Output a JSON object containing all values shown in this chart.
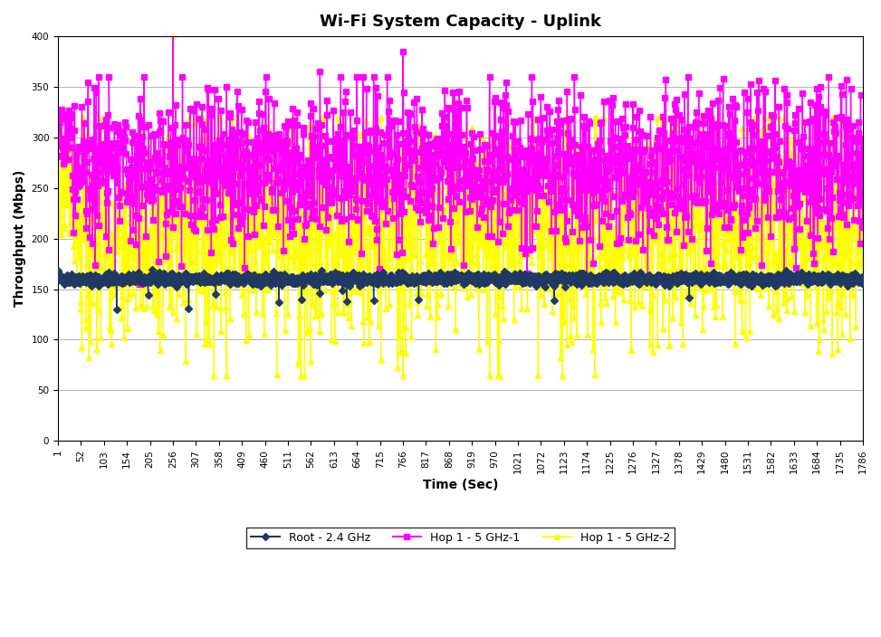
{
  "title": "Wi-Fi System Capacity - Uplink",
  "xlabel": "Time (Sec)",
  "ylabel": "Throughput (Mbps)",
  "ylim": [
    0,
    400
  ],
  "xlim": [
    1,
    1786
  ],
  "yticks": [
    0,
    50,
    100,
    150,
    200,
    250,
    300,
    350,
    400
  ],
  "x_ticks": [
    1,
    52,
    103,
    154,
    205,
    256,
    307,
    358,
    409,
    460,
    511,
    562,
    613,
    664,
    715,
    766,
    817,
    868,
    919,
    970,
    1021,
    1072,
    1123,
    1174,
    1225,
    1276,
    1327,
    1378,
    1429,
    1480,
    1531,
    1582,
    1633,
    1684,
    1735,
    1786
  ],
  "series": [
    {
      "label": "Root - 2.4 GHz",
      "color": "#1F3864",
      "marker": "D",
      "markersize": 4,
      "linewidth": 1.0
    },
    {
      "label": "Hop 1 - 5 GHz-1",
      "color": "#FF00FF",
      "marker": "s",
      "markersize": 4,
      "linewidth": 1.0
    },
    {
      "label": "Hop 1 - 5 GHz-2",
      "color": "#FFFF00",
      "marker": "^",
      "markersize": 4,
      "linewidth": 1.0
    }
  ],
  "bg_color": "#FFFFFF",
  "grid_color": "#999999",
  "title_fontsize": 13,
  "label_fontsize": 10,
  "tick_fontsize": 7.5,
  "legend_fontsize": 9
}
